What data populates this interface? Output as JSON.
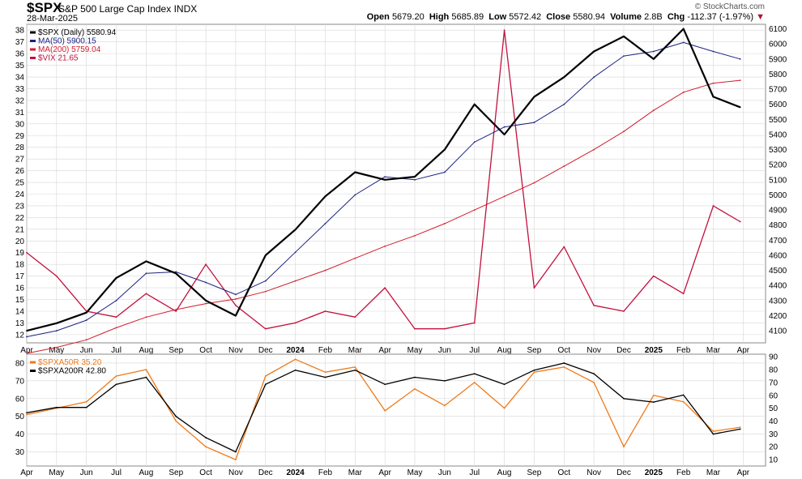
{
  "header": {
    "symbol": "$SPX",
    "name": "S&P 500 Large Cap Index",
    "exchange": "INDX",
    "date": "28-Mar-2025",
    "brand": "© StockCharts.com",
    "open_label": "Open",
    "open": "5679.20",
    "high_label": "High",
    "high": "5685.89",
    "low_label": "Low",
    "low": "5572.42",
    "close_label": "Close",
    "close": "5580.94",
    "volume_label": "Volume",
    "volume": "2.8B",
    "chg_label": "Chg",
    "chg": "-112.37 (-1.97%)",
    "chg_arrow": "▼"
  },
  "colors": {
    "spx": "#000000",
    "ma50": "#1a237e",
    "ma200": "#d01c2c",
    "vix": "#c2103c",
    "spxa50r": "#ef7a1a",
    "spxa200r": "#000000",
    "grid": "#d7d7d7",
    "frame": "#8a8a8a"
  },
  "chart_data": [
    {
      "type": "line",
      "panel": "price",
      "x_axis_labels": [
        "Apr",
        "May",
        "Jun",
        "Jul",
        "Aug",
        "Sep",
        "Oct",
        "Nov",
        "Dec",
        "2024",
        "Feb",
        "Mar",
        "Apr",
        "May",
        "Jun",
        "Jul",
        "Aug",
        "Sep",
        "Oct",
        "Nov",
        "Dec",
        "2025",
        "Feb",
        "Mar",
        "Apr"
      ],
      "x_range": [
        "2023-04",
        "2025-04"
      ],
      "left_axis": {
        "ticks": [
          12,
          13,
          14,
          15,
          16,
          17,
          18,
          19,
          20,
          21,
          22,
          23,
          24,
          25,
          26,
          27,
          28,
          29,
          30,
          31,
          32,
          33,
          34,
          35,
          36,
          37,
          38
        ],
        "range": [
          11.3,
          38.5
        ],
        "series": [
          "$VIX"
        ]
      },
      "right_axis": {
        "ticks": [
          4100,
          4200,
          4300,
          4400,
          4500,
          4600,
          4700,
          4800,
          4900,
          5000,
          5100,
          5200,
          5300,
          5400,
          5500,
          5600,
          5700,
          5800,
          5900,
          6000,
          6100
        ],
        "range": [
          4020,
          6130
        ],
        "series": [
          "$SPX (Daily)",
          "MA(50)",
          "MA(200)"
        ]
      },
      "legend": [
        {
          "label": "$SPX (Daily) 5580.94",
          "color": "#000000"
        },
        {
          "label": "MA(50) 5900.15",
          "color": "#1a237e"
        },
        {
          "label": "MA(200) 5759.04",
          "color": "#d01c2c"
        },
        {
          "label": "$VIX 21.65",
          "color": "#c2103c"
        }
      ],
      "series": [
        {
          "name": "$SPX (Daily)",
          "axis": "right",
          "x": [
            "2023-04",
            "2023-05",
            "2023-06",
            "2023-07",
            "2023-08",
            "2023-09",
            "2023-10",
            "2023-11",
            "2023-12",
            "2024-01",
            "2024-02",
            "2024-03",
            "2024-04",
            "2024-05",
            "2024-06",
            "2024-07",
            "2024-08",
            "2024-09",
            "2024-10",
            "2024-11",
            "2024-12",
            "2025-01",
            "2025-02",
            "2025-03",
            "2025-03-28"
          ],
          "values": [
            4100,
            4150,
            4220,
            4450,
            4560,
            4480,
            4300,
            4200,
            4600,
            4770,
            4990,
            5150,
            5100,
            5120,
            5300,
            5600,
            5400,
            5650,
            5780,
            5950,
            6050,
            5900,
            6100,
            5650,
            5581
          ]
        },
        {
          "name": "MA(50)",
          "axis": "right",
          "x": [
            "2023-04",
            "2023-05",
            "2023-06",
            "2023-07",
            "2023-08",
            "2023-09",
            "2023-10",
            "2023-11",
            "2023-12",
            "2024-01",
            "2024-02",
            "2024-03",
            "2024-04",
            "2024-05",
            "2024-06",
            "2024-07",
            "2024-08",
            "2024-09",
            "2024-10",
            "2024-11",
            "2024-12",
            "2025-01",
            "2025-02",
            "2025-03",
            "2025-03-28"
          ],
          "values": [
            4060,
            4100,
            4170,
            4300,
            4480,
            4490,
            4420,
            4340,
            4430,
            4620,
            4810,
            5000,
            5120,
            5100,
            5150,
            5350,
            5450,
            5480,
            5600,
            5780,
            5920,
            5950,
            6010,
            5950,
            5900
          ]
        },
        {
          "name": "MA(200)",
          "axis": "right",
          "x": [
            "2023-04",
            "2023-05",
            "2023-06",
            "2023-07",
            "2023-08",
            "2023-09",
            "2023-10",
            "2023-11",
            "2023-12",
            "2024-01",
            "2024-02",
            "2024-03",
            "2024-04",
            "2024-05",
            "2024-06",
            "2024-07",
            "2024-08",
            "2024-09",
            "2024-10",
            "2024-11",
            "2024-12",
            "2025-01",
            "2025-02",
            "2025-03",
            "2025-03-28"
          ],
          "values": [
            3950,
            3990,
            4040,
            4120,
            4190,
            4240,
            4280,
            4310,
            4360,
            4430,
            4500,
            4580,
            4660,
            4730,
            4810,
            4900,
            4990,
            5080,
            5190,
            5300,
            5420,
            5560,
            5680,
            5740,
            5759
          ]
        },
        {
          "name": "$VIX",
          "axis": "left",
          "x": [
            "2023-04",
            "2023-05",
            "2023-06",
            "2023-07",
            "2023-08",
            "2023-09",
            "2023-10",
            "2023-11",
            "2023-12",
            "2024-01",
            "2024-02",
            "2024-03",
            "2024-04",
            "2024-05",
            "2024-06",
            "2024-07",
            "2024-08",
            "2024-09",
            "2024-10",
            "2024-11",
            "2024-12",
            "2025-01",
            "2025-02",
            "2025-03",
            "2025-03-28"
          ],
          "values": [
            19,
            17,
            14,
            13.5,
            15.5,
            14,
            18,
            14.5,
            12.5,
            13,
            14,
            13.5,
            16,
            12.5,
            12.5,
            13,
            38,
            16,
            19.5,
            14.5,
            14,
            17,
            15.5,
            23,
            21.65
          ]
        }
      ]
    },
    {
      "type": "line",
      "panel": "breadth",
      "x_axis_labels": [
        "Apr",
        "May",
        "Jun",
        "Jul",
        "Aug",
        "Sep",
        "Oct",
        "Nov",
        "Dec",
        "2024",
        "Feb",
        "Mar",
        "Apr",
        "May",
        "Jun",
        "Jul",
        "Aug",
        "Sep",
        "Oct",
        "Nov",
        "Dec",
        "2025",
        "Feb",
        "Mar",
        "Apr"
      ],
      "left_axis": {
        "ticks": [
          30,
          40,
          50,
          60,
          70,
          80
        ],
        "range": [
          22,
          85
        ],
        "series": [
          "$SPXA200R"
        ]
      },
      "right_axis": {
        "ticks": [
          10,
          20,
          30,
          40,
          50,
          60,
          70,
          80,
          90
        ],
        "range": [
          5,
          92
        ],
        "series": [
          "$SPXA50R"
        ]
      },
      "legend": [
        {
          "label": "$SPXA50R 35.20",
          "color": "#ef7a1a"
        },
        {
          "label": "$SPXA200R 42.80",
          "color": "#000000"
        }
      ],
      "series": [
        {
          "name": "$SPXA50R",
          "axis": "right",
          "x": [
            "2023-04",
            "2023-05",
            "2023-06",
            "2023-07",
            "2023-08",
            "2023-09",
            "2023-10",
            "2023-11",
            "2023-12",
            "2024-01",
            "2024-02",
            "2024-03",
            "2024-04",
            "2024-05",
            "2024-06",
            "2024-07",
            "2024-08",
            "2024-09",
            "2024-10",
            "2024-11",
            "2024-12",
            "2025-01",
            "2025-02",
            "2025-03",
            "2025-03-28"
          ],
          "values": [
            45,
            50,
            55,
            75,
            80,
            40,
            20,
            10,
            75,
            88,
            78,
            82,
            48,
            65,
            52,
            70,
            50,
            78,
            82,
            70,
            20,
            60,
            55,
            32,
            35.2
          ]
        },
        {
          "name": "$SPXA200R",
          "axis": "left",
          "x": [
            "2023-04",
            "2023-05",
            "2023-06",
            "2023-07",
            "2023-08",
            "2023-09",
            "2023-10",
            "2023-11",
            "2023-12",
            "2024-01",
            "2024-02",
            "2024-03",
            "2024-04",
            "2024-05",
            "2024-06",
            "2024-07",
            "2024-08",
            "2024-09",
            "2024-10",
            "2024-11",
            "2024-12",
            "2025-01",
            "2025-02",
            "2025-03",
            "2025-03-28"
          ],
          "values": [
            52,
            55,
            55,
            68,
            72,
            50,
            38,
            30,
            68,
            76,
            72,
            76,
            68,
            72,
            70,
            74,
            68,
            76,
            80,
            74,
            60,
            58,
            62,
            40,
            42.8
          ]
        }
      ]
    }
  ]
}
